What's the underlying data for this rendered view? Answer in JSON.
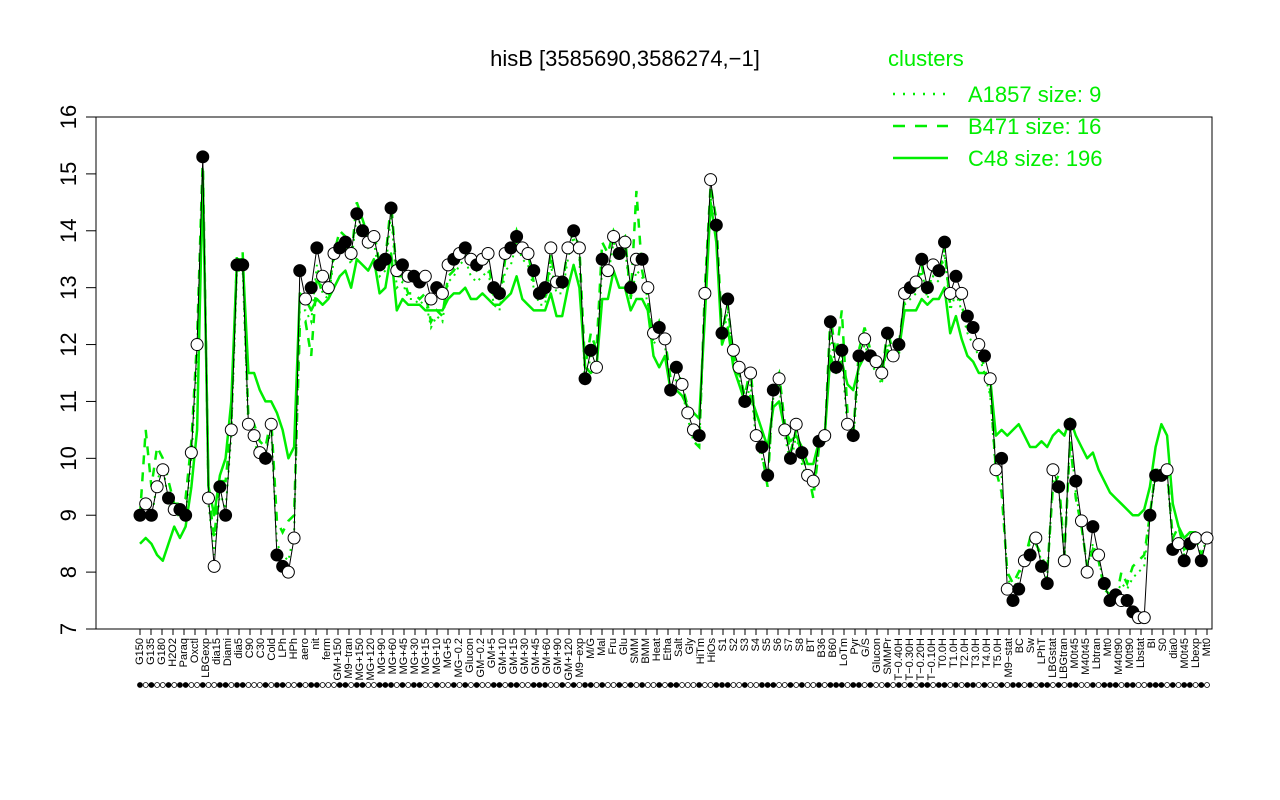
{
  "chart_data": {
    "type": "line",
    "title": "hisB [3585690,3586274,−1]",
    "xlabel": "",
    "ylabel": "",
    "ylim": [
      7,
      16
    ],
    "yticks": [
      "7",
      "8",
      "9",
      "10",
      "11",
      "12",
      "13",
      "14",
      "15",
      "16"
    ],
    "grid": false,
    "legend_position": "top-right",
    "legend_title": "clusters",
    "colors": {
      "series": "#00ee00",
      "profile": "#000000",
      "axis": "#000000"
    },
    "series": [
      {
        "name": "A1857 size: 9",
        "style": "dotted"
      },
      {
        "name": "B471 size: 16",
        "style": "dashed"
      },
      {
        "name": "C48 size: 196",
        "style": "solid"
      }
    ],
    "tick_labels": [
      "G150",
      "G135",
      "G180",
      "H2O2",
      "Paraq",
      "Oxctl",
      "LBGexp",
      "dia15",
      "Diami",
      "dia5",
      "C90",
      "C30",
      "Cold",
      "LPh",
      "HPh",
      "aero",
      "nit",
      "ferm",
      "GM+150",
      "M9−tran",
      "MG+150",
      "MG+120",
      "MG+90",
      "MG+60",
      "MG+45",
      "MG+30",
      "MG+15",
      "MG+10",
      "MG+5",
      "MG−0.2",
      "Glucon",
      "GM−0.2",
      "GM+5",
      "GM+10",
      "GM+15",
      "GM+30",
      "GM+45",
      "GM+60",
      "GM+90",
      "GM+120",
      "M9−exp",
      "M/G",
      "Mal",
      "Fru",
      "Glu",
      "SMM",
      "BMM",
      "Heat",
      "Etha",
      "Salt",
      "Gly",
      "HiTm",
      "HiOs",
      "S1",
      "S2",
      "S3",
      "S4",
      "S5",
      "S6",
      "S7",
      "S8",
      "BT",
      "B36",
      "B60",
      "LoTm",
      "Pyr",
      "G/S",
      "Glucon",
      "SMMPr",
      "T−0.40H",
      "T−0.30H",
      "T−0.20H",
      "T−0.10H",
      "T0.0H",
      "T1.0H",
      "T2.0H",
      "T3.0H",
      "T4.0H",
      "T5.0H",
      "M9−stat",
      "BC",
      "Sw",
      "LPhT",
      "LBGstat",
      "LBGtran",
      "M0t45",
      "M40t45",
      "Lbtran",
      "Mt0",
      "M40t90",
      "M0t90",
      "Lbstat",
      "BI",
      "S0",
      "dia0",
      "M0t45",
      "Lbexp",
      "Mt0"
    ],
    "profile_values": [
      9.0,
      9.2,
      9.0,
      9.5,
      9.8,
      9.3,
      9.1,
      9.1,
      9.0,
      10.1,
      12.0,
      15.3,
      9.3,
      8.1,
      9.5,
      9.0,
      10.5,
      13.4,
      13.4,
      10.6,
      10.4,
      10.1,
      10.0,
      10.6,
      8.3,
      8.1,
      8.0,
      8.6,
      13.3,
      12.8,
      13.0,
      13.7,
      13.2,
      13.0,
      13.6,
      13.7,
      13.8,
      13.6,
      14.3,
      14.0,
      13.8,
      13.9,
      13.4,
      13.5,
      14.4,
      13.3,
      13.4,
      13.2,
      13.2,
      13.1,
      13.2,
      12.8,
      13.0,
      12.9,
      13.4,
      13.5,
      13.6,
      13.7,
      13.5,
      13.4,
      13.5,
      13.6,
      13.0,
      12.9,
      13.6,
      13.7,
      13.9,
      13.7,
      13.6,
      13.3,
      12.9,
      13.0,
      13.7,
      13.1,
      13.1,
      13.7,
      14.0,
      13.7,
      11.4,
      11.9,
      11.6,
      13.5,
      13.3,
      13.9,
      13.6,
      13.8,
      13.0,
      13.5,
      13.5,
      13.0,
      12.2,
      12.3,
      12.1,
      11.2,
      11.6,
      11.3,
      10.8,
      10.5,
      10.4,
      12.9,
      14.9,
      14.1,
      12.2,
      12.8,
      11.9,
      11.6,
      11.0,
      11.5,
      10.4,
      10.2,
      9.7,
      11.2,
      11.4,
      10.5,
      10.0,
      10.6,
      10.1,
      9.7,
      9.6,
      10.3,
      10.4,
      12.4,
      11.6,
      11.9,
      10.6,
      10.4,
      11.8,
      12.1,
      11.8,
      11.7,
      11.5,
      12.2,
      11.8,
      12.0,
      12.9,
      13.0,
      13.1,
      13.5,
      13.0,
      13.4,
      13.3,
      13.8,
      12.9,
      13.2,
      12.9,
      12.5,
      12.3,
      12.0,
      11.8,
      11.4,
      9.8,
      10.0,
      7.7,
      7.5,
      7.7,
      8.2,
      8.3,
      8.6,
      8.1,
      7.8,
      9.8,
      9.5,
      8.2,
      10.6,
      9.6,
      8.9,
      8.0,
      8.8,
      8.3,
      7.8,
      7.5,
      7.6,
      7.5,
      7.5,
      7.3,
      7.2,
      7.2,
      9.0,
      9.7,
      9.7,
      9.8,
      8.4,
      8.5,
      8.2,
      8.5,
      8.6,
      8.2,
      8.6
    ],
    "profile_filled": [
      1,
      0,
      1,
      0,
      0,
      1,
      0,
      1,
      1,
      0,
      0,
      1,
      0,
      0,
      1,
      1,
      0,
      1,
      1,
      0,
      0,
      0,
      1,
      0,
      1,
      1,
      0,
      0,
      1,
      0,
      1,
      1,
      0,
      0,
      0,
      1,
      1,
      0,
      1,
      1,
      0,
      0,
      1,
      1,
      1,
      0,
      1,
      0,
      1,
      1,
      0,
      0,
      1,
      0,
      0,
      1,
      0,
      1,
      0,
      1,
      0,
      0,
      1,
      1,
      0,
      1,
      1,
      0,
      0,
      1,
      1,
      1,
      0,
      0,
      1,
      0,
      1,
      0,
      1,
      1,
      0,
      1,
      0,
      0,
      1,
      0,
      1,
      0,
      1,
      0,
      0,
      1,
      0,
      1,
      1,
      0,
      0,
      0,
      1,
      0,
      0,
      1,
      1,
      1,
      0,
      0,
      1,
      0,
      0,
      1,
      1,
      1,
      0,
      0,
      1,
      0,
      1,
      0,
      0,
      1,
      0,
      1,
      1,
      1,
      0,
      1,
      1,
      0,
      1,
      0,
      0,
      1,
      0,
      1,
      0,
      1,
      0,
      1,
      1,
      0,
      1,
      1,
      0,
      1,
      0,
      1,
      1,
      0,
      1,
      0,
      0,
      1,
      0,
      1,
      1,
      0,
      1,
      0,
      1,
      1,
      0,
      1,
      0,
      1,
      1,
      0,
      0,
      1,
      0,
      1,
      1,
      1,
      0,
      1,
      1,
      0,
      0,
      1,
      1,
      1,
      0,
      1,
      0,
      1,
      1,
      0,
      1,
      0,
      1,
      0,
      1,
      1
    ],
    "c48_values": [
      8.5,
      8.6,
      8.5,
      8.3,
      8.2,
      8.5,
      8.8,
      8.6,
      8.8,
      9.5,
      10.5,
      15.0,
      9.5,
      9.0,
      9.7,
      10.0,
      11.0,
      13.5,
      13.5,
      11.5,
      11.5,
      11.2,
      11.0,
      11.0,
      10.8,
      10.5,
      10.0,
      10.2,
      12.9,
      12.8,
      12.6,
      12.8,
      12.7,
      12.8,
      13.0,
      13.2,
      13.3,
      13.0,
      13.5,
      13.4,
      13.3,
      13.5,
      12.9,
      13.0,
      13.6,
      12.6,
      12.8,
      12.7,
      12.7,
      12.7,
      12.6,
      12.6,
      12.6,
      12.6,
      12.8,
      12.9,
      12.9,
      13.0,
      12.8,
      12.8,
      12.9,
      12.8,
      12.7,
      12.7,
      12.8,
      12.9,
      13.2,
      12.8,
      12.7,
      12.6,
      12.6,
      12.6,
      12.9,
      12.5,
      12.5,
      13.0,
      13.4,
      13.0,
      11.6,
      11.5,
      11.6,
      12.8,
      12.8,
      13.3,
      13.0,
      13.0,
      12.6,
      12.8,
      12.8,
      12.6,
      11.8,
      11.6,
      11.8,
      11.2,
      11.2,
      11.1,
      10.9,
      10.8,
      10.7,
      12.5,
      14.5,
      13.8,
      12.0,
      12.3,
      11.6,
      11.3,
      11.0,
      11.1,
      10.8,
      10.5,
      10.2,
      10.9,
      11.0,
      10.5,
      10.3,
      10.4,
      10.2,
      9.9,
      9.9,
      10.3,
      10.4,
      11.8,
      11.5,
      11.7,
      11.3,
      11.2,
      11.6,
      11.8,
      11.7,
      11.7,
      11.6,
      11.9,
      11.8,
      11.9,
      12.6,
      12.6,
      12.6,
      12.8,
      12.7,
      12.8,
      12.8,
      13.0,
      12.2,
      12.5,
      12.1,
      11.8,
      11.7,
      11.5,
      11.5,
      11.4,
      10.4,
      10.5,
      10.4,
      10.5,
      10.6,
      10.4,
      10.2,
      10.2,
      10.3,
      10.2,
      10.4,
      10.5,
      10.4,
      10.7,
      10.4,
      10.2,
      10.0,
      10.1,
      9.8,
      9.6,
      9.4,
      9.3,
      9.2,
      9.1,
      9.0,
      9.0,
      9.1,
      9.5,
      10.2,
      10.6,
      10.4,
      9.2,
      8.8,
      8.6,
      8.7,
      8.7,
      8.6,
      8.7
    ],
    "b471_values": [
      9.0,
      10.5,
      9.5,
      10.2,
      10.0,
      9.6,
      9.2,
      9.2,
      9.3,
      10.3,
      12.1,
      15.3,
      9.4,
      8.6,
      9.6,
      9.6,
      10.6,
      13.6,
      13.6,
      10.7,
      10.6,
      10.3,
      10.2,
      10.7,
      8.9,
      8.7,
      8.9,
      9.0,
      12.3,
      12.4,
      11.8,
      13.2,
      12.9,
      12.9,
      13.6,
      14.0,
      13.9,
      13.5,
      14.5,
      14.2,
      13.9,
      14.0,
      13.4,
      13.5,
      14.5,
      13.2,
      13.2,
      12.9,
      12.9,
      12.8,
      12.9,
      12.4,
      12.6,
      12.5,
      13.2,
      13.3,
      13.5,
      13.7,
      13.4,
      13.3,
      13.4,
      13.5,
      12.8,
      12.8,
      13.5,
      13.6,
      14.0,
      13.7,
      13.6,
      13.1,
      12.8,
      12.8,
      13.6,
      13.0,
      13.0,
      13.7,
      14.0,
      13.7,
      11.6,
      12.2,
      11.9,
      13.8,
      13.6,
      14.0,
      13.8,
      13.9,
      12.8,
      14.7,
      13.3,
      12.8,
      12.1,
      12.4,
      12.1,
      11.4,
      11.6,
      11.3,
      10.9,
      10.3,
      10.2,
      13.0,
      14.8,
      14.2,
      12.2,
      12.7,
      11.8,
      11.5,
      11.1,
      11.6,
      10.4,
      10.1,
      9.5,
      11.3,
      11.5,
      10.6,
      10.1,
      10.5,
      10.0,
      9.8,
      9.3,
      10.2,
      10.3,
      12.5,
      11.8,
      12.6,
      10.8,
      10.4,
      11.9,
      12.3,
      11.9,
      11.6,
      11.4,
      12.3,
      11.8,
      12.0,
      12.8,
      12.9,
      13.0,
      13.4,
      12.9,
      13.3,
      13.2,
      13.7,
      12.7,
      13.0,
      12.7,
      12.3,
      12.2,
      11.9,
      11.6,
      11.2,
      9.8,
      9.4,
      8.0,
      7.8,
      8.0,
      8.2,
      8.6,
      8.5,
      8.3,
      8.0,
      9.5,
      9.7,
      8.3,
      10.3,
      9.3,
      8.8,
      8.1,
      8.4,
      8.2,
      7.7,
      7.6,
      7.5,
      8.0,
      7.8,
      8.1,
      8.2,
      8.3,
      9.0,
      9.8,
      9.8,
      9.8,
      8.6,
      8.8,
      8.4,
      8.5,
      8.6,
      8.3,
      8.6
    ],
    "a1857_values": [
      8.9,
      9.3,
      8.9,
      9.6,
      9.9,
      9.2,
      9.0,
      9.0,
      9.0,
      10.0,
      11.8,
      15.1,
      9.2,
      8.3,
      9.4,
      9.1,
      10.4,
      13.3,
      13.3,
      10.5,
      10.3,
      10.0,
      10.1,
      10.5,
      8.5,
      8.3,
      8.2,
      8.7,
      12.6,
      12.6,
      12.4,
      13.4,
      12.9,
      12.8,
      13.5,
      13.8,
      13.7,
      13.4,
      14.3,
      14.0,
      13.7,
      13.8,
      13.2,
      13.3,
      14.3,
      13.0,
      13.1,
      12.8,
      12.8,
      12.7,
      12.8,
      12.3,
      12.5,
      12.4,
      13.1,
      13.2,
      13.4,
      13.5,
      13.2,
      13.1,
      13.2,
      13.3,
      12.7,
      12.6,
      13.3,
      13.4,
      13.8,
      13.5,
      13.4,
      13.0,
      12.7,
      12.7,
      13.4,
      12.9,
      12.9,
      13.5,
      13.9,
      13.5,
      11.3,
      11.8,
      11.5,
      13.4,
      13.2,
      13.8,
      13.5,
      13.7,
      12.8,
      13.3,
      13.2,
      12.7,
      12.0,
      12.2,
      12.0,
      11.1,
      11.4,
      11.2,
      10.7,
      10.3,
      10.2,
      12.8,
      14.6,
      13.9,
      12.0,
      12.6,
      11.7,
      11.4,
      10.9,
      11.3,
      10.3,
      10.0,
      9.6,
      11.1,
      11.3,
      10.4,
      9.9,
      10.4,
      9.9,
      9.6,
      9.4,
      10.2,
      10.3,
      12.2,
      11.5,
      11.8,
      10.5,
      10.3,
      11.6,
      12.0,
      11.7,
      11.5,
      11.3,
      12.1,
      11.7,
      11.8,
      12.7,
      12.8,
      12.9,
      13.3,
      12.8,
      13.2,
      13.1,
      13.6,
      12.6,
      12.9,
      12.6,
      12.2,
      12.0,
      11.8,
      11.5,
      11.1,
      9.7,
      9.7,
      7.9,
      7.7,
      7.9,
      8.3,
      8.5,
      8.5,
      8.2,
      7.9,
      9.6,
      9.5,
      8.3,
      10.4,
      9.4,
      8.8,
      8.1,
      8.5,
      8.2,
      7.8,
      7.6,
      7.6,
      7.8,
      7.7,
      7.9,
      8.0,
      8.1,
      9.0,
      9.7,
      9.7,
      9.7,
      8.5,
      8.6,
      8.3,
      8.5,
      8.6,
      8.3,
      8.6
    ]
  }
}
